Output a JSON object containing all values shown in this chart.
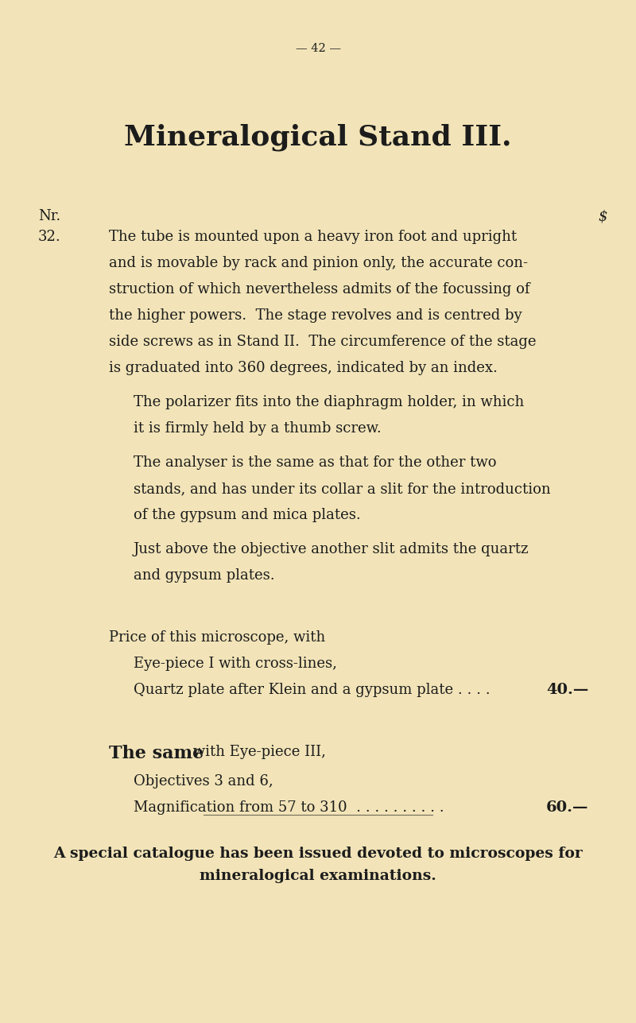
{
  "bg_color": "#f2e4b8",
  "text_color": "#1c1c1c",
  "page_number": "— 42 —",
  "title": "Mineralogical Stand III.",
  "col_header_left": "Nr.",
  "col_header_right": "$",
  "item_number": "32.",
  "lines_p1": [
    "The tube is mounted upon a heavy iron foot and upright",
    "and is movable by rack and pinion only, the accurate con-",
    "struction of which nevertheless admits of the focussing of",
    "the higher powers.  The stage revolves and is centred by",
    "side screws as in Stand II.  The circumference of the stage",
    "is graduated into 360 degrees, indicated by an index."
  ],
  "lines_p2": [
    "The polarizer fits into the diaphragm holder, in which",
    "it is firmly held by a thumb screw."
  ],
  "lines_p3": [
    "The analyser is the same as that for the other two",
    "stands, and has under its collar a slit for the introduction",
    "of the gypsum and mica plates."
  ],
  "lines_p4": [
    "Just above the objective another slit admits the quartz",
    "and gypsum plates."
  ],
  "price_label": "Price of this microscope, with",
  "price_line1": "Eye-piece I with cross-lines,",
  "price_line2_left": "Quartz plate after Klein and a gypsum plate . . . .  ",
  "price_line2_right": "40.—",
  "same_bold": "The same",
  "same_rest": " with Eye-piece III,",
  "same_line1": "Objectives 3 and 6,",
  "same_line2_left": "Magnification from 57 to 310  . . . . . . . . . .  ",
  "same_line2_right": "60.—",
  "footer_line1": "A special catalogue has been issued devoted to microscopes for",
  "footer_line2": "mineralogical examinations.",
  "font_size_page": 10.5,
  "font_size_title": 26,
  "font_size_body": 13,
  "font_size_price_right": 14,
  "font_size_same_bold": 16,
  "font_size_footer": 13.5
}
